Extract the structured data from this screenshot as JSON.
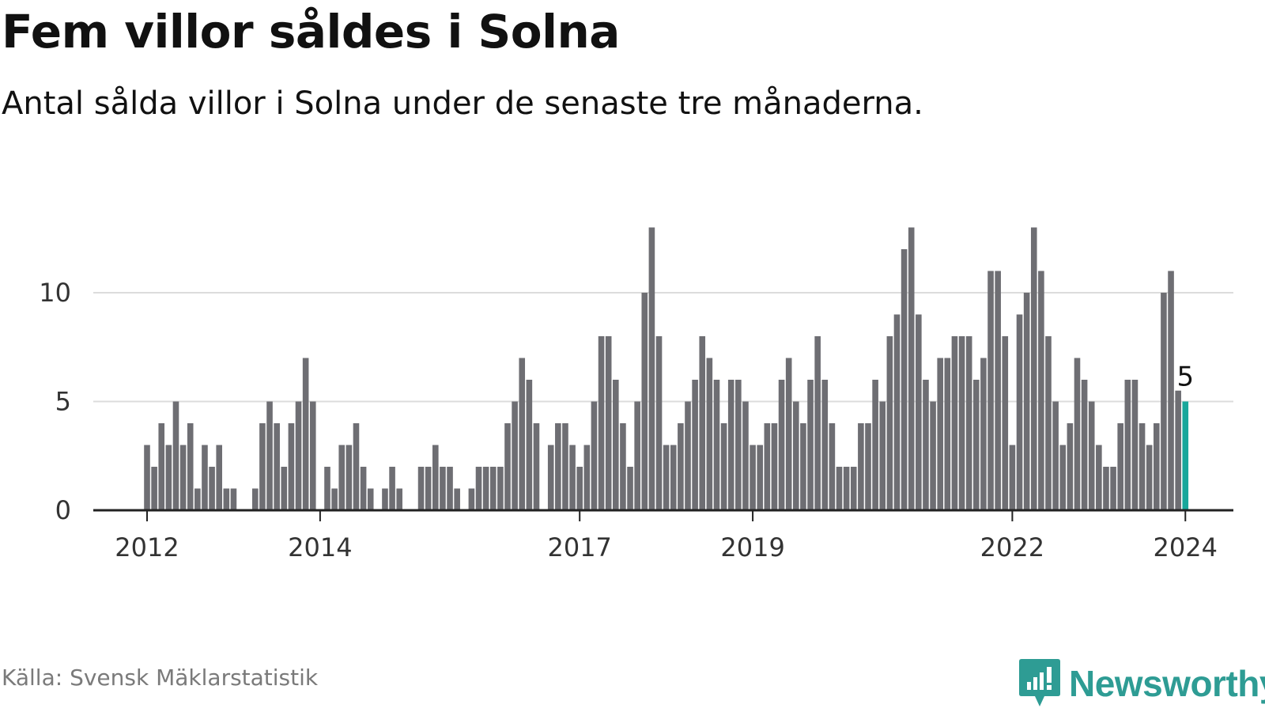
{
  "header": {
    "title": "Fem villor såldes i Solna",
    "subtitle": "Antal sålda villor i Solna under de senaste tre månaderna."
  },
  "footer": {
    "source": "Källa: Svensk Mäklarstatistik",
    "brand": "Newsworthy"
  },
  "colors": {
    "bar": "#6e6e73",
    "highlight": "#19a79b",
    "grid": "#dcdcdc",
    "axis": "#222222",
    "brand": "#2e9c94"
  },
  "logo_icon": "bar-chart-speech-bubble-icon",
  "chart_data": {
    "type": "bar",
    "title": "Fem villor såldes i Solna",
    "xlabel": "",
    "ylabel": "",
    "ylim": [
      0,
      14
    ],
    "yticks": [
      0,
      5,
      10
    ],
    "grid": true,
    "x_start": "2012-01",
    "x_tick_labels": [
      {
        "label": "2012",
        "index": 0
      },
      {
        "label": "2014",
        "index": 24
      },
      {
        "label": "2017",
        "index": 60
      },
      {
        "label": "2019",
        "index": 84
      },
      {
        "label": "2022",
        "index": 120
      },
      {
        "label": "2024",
        "index": 144
      }
    ],
    "values": [
      3,
      2,
      4,
      3,
      5,
      3,
      4,
      1,
      3,
      2,
      3,
      1,
      1,
      0,
      0,
      1,
      4,
      5,
      4,
      2,
      4,
      5,
      7,
      5,
      0,
      2,
      1,
      3,
      3,
      4,
      2,
      1,
      0,
      1,
      2,
      1,
      0,
      0,
      2,
      2,
      3,
      2,
      2,
      1,
      0,
      1,
      2,
      2,
      2,
      2,
      4,
      5,
      7,
      6,
      4,
      0,
      3,
      4,
      4,
      3,
      2,
      3,
      5,
      8,
      8,
      6,
      4,
      2,
      5,
      10,
      13,
      8,
      3,
      3,
      4,
      5,
      6,
      8,
      7,
      6,
      4,
      6,
      6,
      5,
      3,
      3,
      4,
      4,
      6,
      7,
      5,
      4,
      6,
      8,
      6,
      4,
      2,
      2,
      2,
      4,
      4,
      6,
      5,
      8,
      9,
      12,
      13,
      9,
      6,
      5,
      7,
      7,
      8,
      8,
      8,
      6,
      7,
      11,
      11,
      8,
      3,
      9,
      10,
      13,
      11,
      8,
      5,
      3,
      4,
      7,
      6,
      5,
      3,
      2,
      2,
      4,
      6,
      6,
      4,
      3,
      4,
      10,
      11,
      5.5,
      5
    ],
    "highlight": {
      "index": 144,
      "value": 5,
      "label": "5"
    }
  }
}
